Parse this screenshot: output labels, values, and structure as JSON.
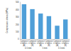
{
  "chart_data": {
    "type": "bar",
    "y_label": "Compression stress (MPa)",
    "categories": [
      "Composite fabrics (A)",
      "Composite fabrics (B)",
      "Composite fabrics (A)",
      "Composite fabrics (B)",
      "Composite fabrics (A)",
      "Composite fabrics (B)"
    ],
    "group_labels": [
      "0.5 mm",
      "1 mm",
      "1.5 mm"
    ],
    "values": [
      470,
      405,
      345,
      310,
      180,
      265
    ],
    "color": "#4f9fd8",
    "ylim": [
      0,
      500
    ],
    "yticks": [
      0,
      100,
      200,
      300,
      400,
      500
    ],
    "grid": false
  }
}
